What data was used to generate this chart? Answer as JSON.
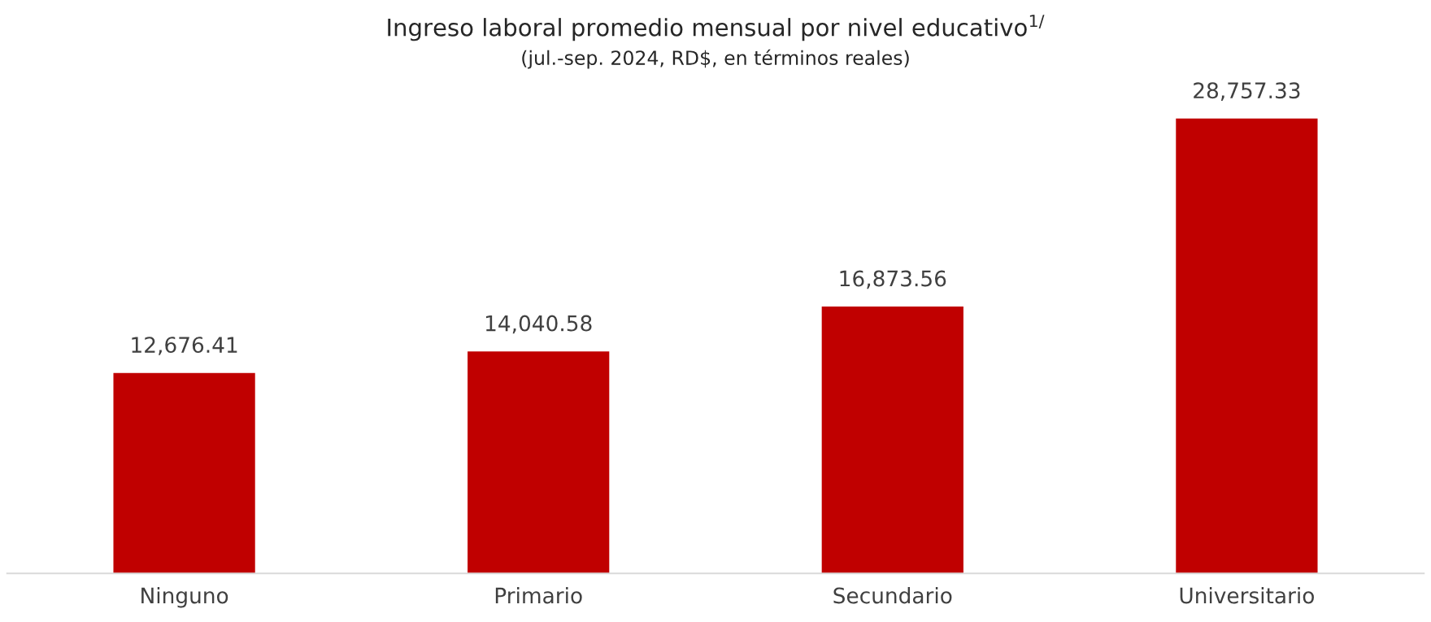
{
  "chart_data": {
    "type": "bar",
    "title": "Ingreso laboral promedio mensual por nivel educativo$^{1/}$",
    "subtitle": "(jul.-sep. 2024, RD$, en términos reales)",
    "categories": [
      "Ninguno",
      "Primario",
      "Secundario",
      "Universitario"
    ],
    "values": [
      12676.41,
      14040.58,
      16873.56,
      28757.33
    ],
    "value_labels": [
      "12,676.41",
      "14,040.58",
      "16,873.56",
      "28,757.33"
    ],
    "color": "#c00000",
    "grid": false,
    "legend": false
  }
}
